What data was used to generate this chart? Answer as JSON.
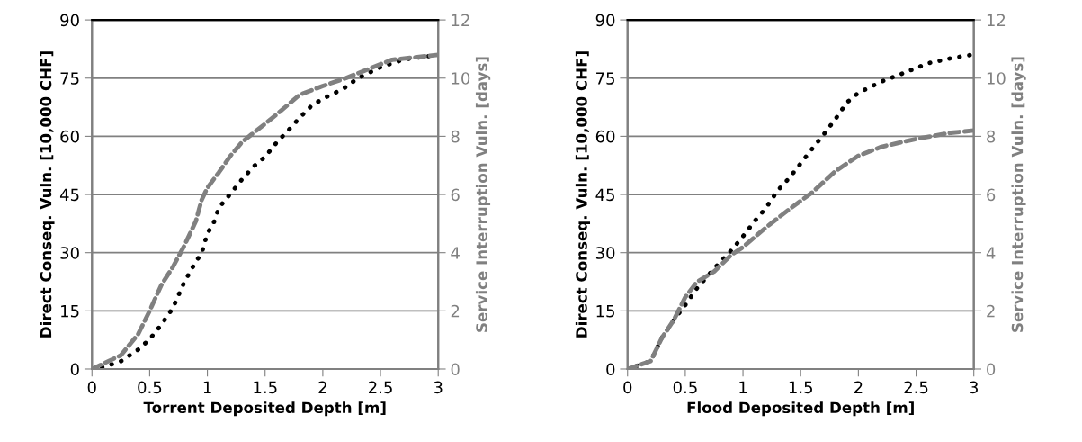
{
  "chart_data": [
    {
      "type": "line",
      "xlabel": "Torrent Deposited Depth [m]",
      "ylabel": "Direct Conseq. Vuln. [10,000 CHF]",
      "y2label": "Service Interruption Vuln. [days]",
      "xlim": [
        0,
        3
      ],
      "xticks": [
        0,
        0.5,
        1,
        1.5,
        2,
        2.5,
        3
      ],
      "ylim": [
        0,
        90
      ],
      "yticks": [
        0,
        15,
        30,
        45,
        60,
        75,
        90
      ],
      "y2lim": [
        0,
        12
      ],
      "y2ticks": [
        0,
        2,
        4,
        6,
        8,
        10,
        12
      ],
      "grid": "y",
      "legend": false,
      "series": [
        {
          "color": "#000000",
          "line_style": "dotted",
          "x": [
            0,
            0.1,
            0.25,
            0.4,
            0.5,
            0.6,
            0.7,
            0.8,
            0.9,
            0.95,
            1.0,
            1.05,
            1.1,
            1.2,
            1.3,
            1.4,
            1.5,
            1.6,
            1.7,
            1.8,
            1.9,
            2.0,
            2.1,
            2.2,
            2.3,
            2.5,
            2.7,
            3.0
          ],
          "values": [
            0,
            0.5,
            2,
            5,
            7.7,
            11.4,
            15.7,
            22.4,
            27.7,
            29.8,
            35,
            37.3,
            41.6,
            45.2,
            48.9,
            52.2,
            54.7,
            58.4,
            61.5,
            64.8,
            67.8,
            69.7,
            71.1,
            72.7,
            74.9,
            77.8,
            79.8,
            81
          ]
        },
        {
          "color": "#808080",
          "line_style": "dashed",
          "axis": "y2",
          "x": [
            0,
            0.25,
            0.4,
            0.5,
            0.6,
            0.7,
            0.8,
            0.9,
            0.95,
            1.0,
            1.1,
            1.2,
            1.3,
            1.4,
            1.5,
            1.6,
            1.8,
            2.0,
            2.2,
            2.4,
            2.6,
            3.0
          ],
          "values": [
            0,
            0.47,
            1.2,
            2.0,
            2.88,
            3.5,
            4.24,
            5.08,
            5.81,
            6.23,
            6.76,
            7.33,
            7.8,
            8.12,
            8.43,
            8.75,
            9.43,
            9.73,
            10.0,
            10.32,
            10.63,
            10.8
          ]
        }
      ]
    },
    {
      "type": "line",
      "xlabel": "Flood Deposited Depth [m]",
      "ylabel": "Direct Conseq. Vuln. [10,000 CHF]",
      "y2label": "Service Interruption Vuln. [days]",
      "xlim": [
        0,
        3
      ],
      "xticks": [
        0,
        0.5,
        1,
        1.5,
        2,
        2.5,
        3
      ],
      "ylim": [
        0,
        90
      ],
      "yticks": [
        0,
        15,
        30,
        45,
        60,
        75,
        90
      ],
      "y2lim": [
        0,
        12
      ],
      "y2ticks": [
        0,
        2,
        4,
        6,
        8,
        10,
        12
      ],
      "grid": "y",
      "legend": false,
      "series": [
        {
          "color": "#000000",
          "line_style": "dotted",
          "x": [
            0,
            0.2,
            0.3,
            0.4,
            0.5,
            0.6,
            0.75,
            0.9,
            1.0,
            1.1,
            1.2,
            1.3,
            1.4,
            1.5,
            1.6,
            1.7,
            1.8,
            1.9,
            2.0,
            2.2,
            2.4,
            2.6,
            2.8,
            3.0
          ],
          "values": [
            0,
            2,
            8.2,
            12.6,
            16.5,
            20.8,
            25.9,
            30.6,
            34.2,
            38.1,
            41.6,
            46,
            49.2,
            53,
            56.8,
            60.5,
            64.4,
            68.7,
            71.2,
            74.1,
            76.4,
            78.8,
            80.1,
            81.1
          ]
        },
        {
          "color": "#808080",
          "line_style": "dashed",
          "axis": "y2",
          "x": [
            0,
            0.2,
            0.3,
            0.4,
            0.5,
            0.6,
            0.75,
            0.9,
            1.0,
            1.2,
            1.4,
            1.6,
            1.8,
            2.0,
            2.2,
            2.5,
            2.8,
            3.0
          ],
          "values": [
            0,
            0.27,
            1.09,
            1.68,
            2.47,
            2.99,
            3.35,
            3.93,
            4.19,
            4.87,
            5.49,
            6.07,
            6.8,
            7.33,
            7.64,
            7.91,
            8.12,
            8.2
          ]
        }
      ]
    }
  ]
}
